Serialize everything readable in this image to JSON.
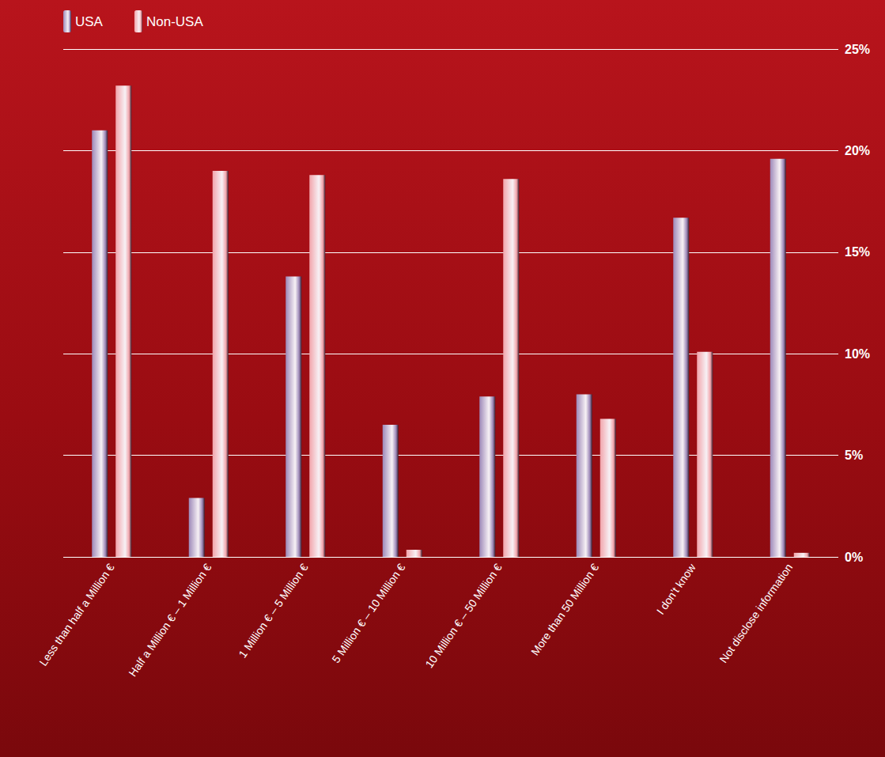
{
  "chart_data": {
    "type": "bar",
    "categories": [
      "Less than half a Million €",
      "Half a Million € – 1 Million €",
      "1 Million € – 5 Million €",
      "5 Million € – 10 Million €",
      "10 Million € – 50 Million €",
      "More than 50 Million €",
      "I don’t know",
      "Not disclose information"
    ],
    "series": [
      {
        "name": "USA",
        "color": "#9d88b8",
        "values": [
          21.0,
          2.9,
          13.8,
          6.5,
          7.9,
          8.0,
          16.7,
          19.6
        ]
      },
      {
        "name": "Non-USA",
        "color": "#f2a4ab",
        "values": [
          23.2,
          19.0,
          18.8,
          0.35,
          18.6,
          6.8,
          10.1,
          0.2
        ]
      }
    ],
    "ylim": [
      0,
      25
    ],
    "yticks": [
      {
        "value": 0,
        "label": "0%"
      },
      {
        "value": 5,
        "label": "5%"
      },
      {
        "value": 10,
        "label": "10%"
      },
      {
        "value": 15,
        "label": "15%"
      },
      {
        "value": 20,
        "label": "20%"
      },
      {
        "value": 25,
        "label": "25%"
      }
    ],
    "grid": true,
    "legend": "top-left"
  }
}
